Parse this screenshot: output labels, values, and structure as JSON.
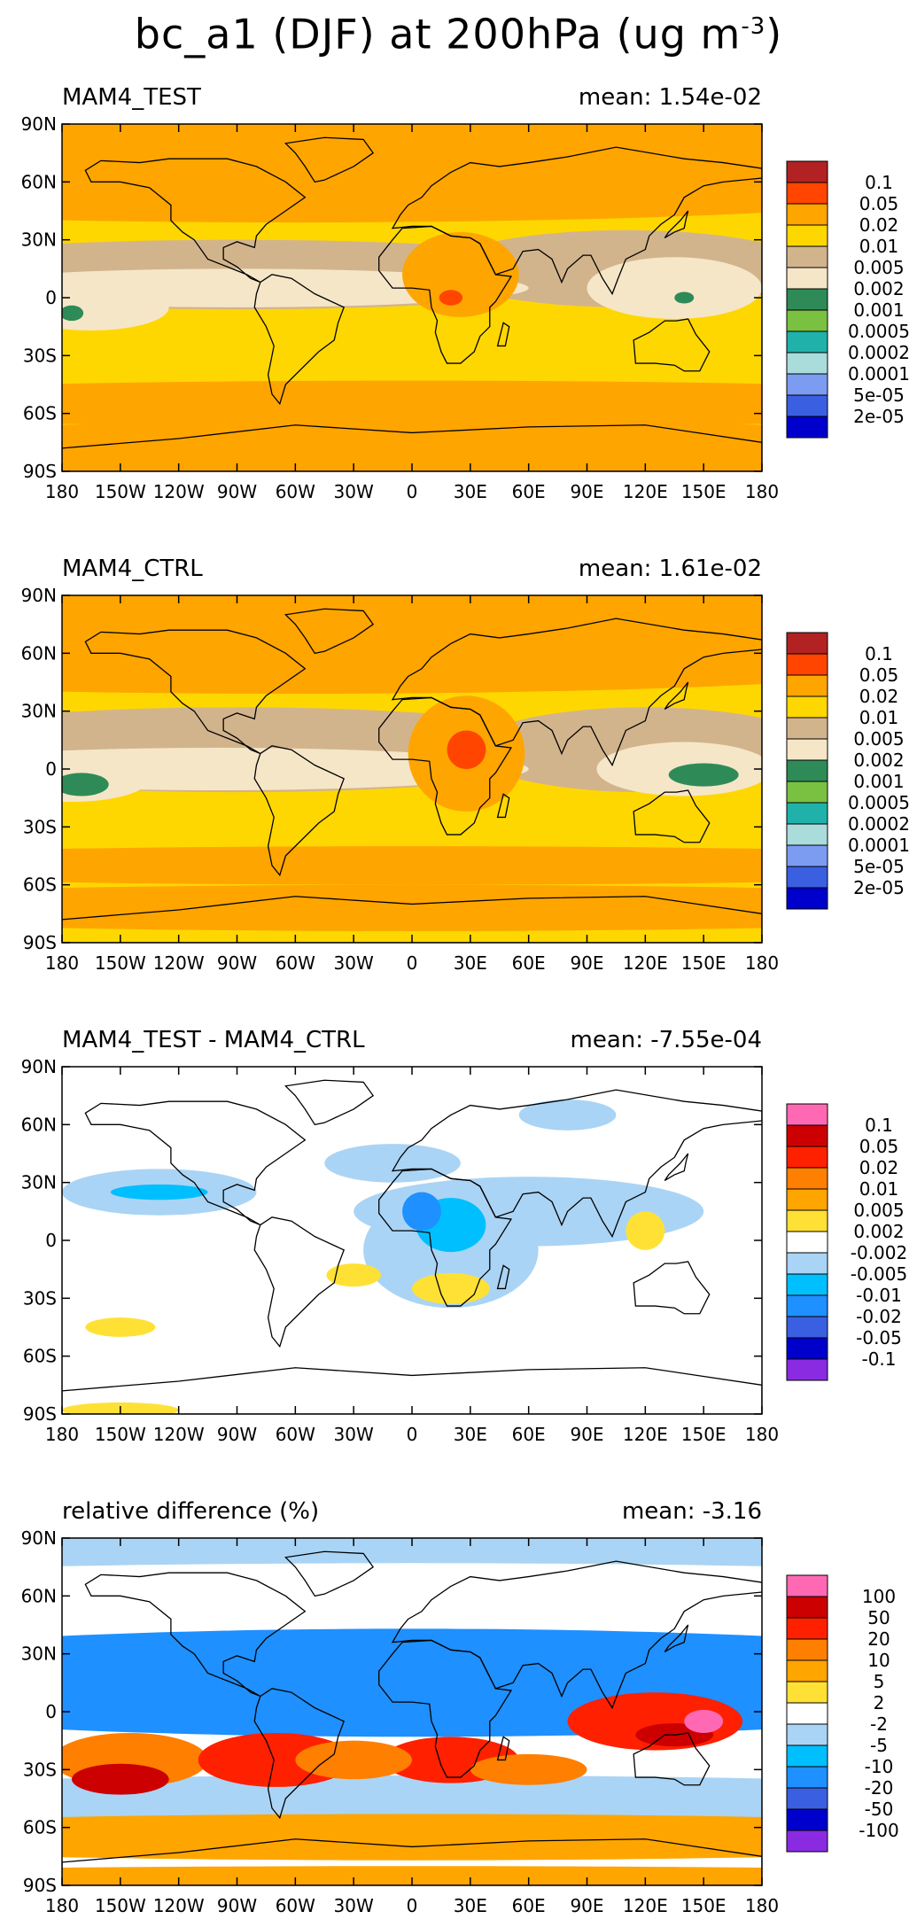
{
  "main_title": {
    "prefix": "bc_a1 (DJF) at 200hPa (ug m",
    "sup": "-3",
    "suffix": ")"
  },
  "chart_data": [
    {
      "type": "heatmap",
      "title": "MAM4_TEST",
      "mean_label": "mean: 1.54e-02",
      "xlabels": [
        "180",
        "150W",
        "120W",
        "90W",
        "60W",
        "30W",
        "0",
        "30E",
        "60E",
        "90E",
        "120E",
        "150E",
        "180"
      ],
      "ylabels": [
        "90N",
        "60N",
        "30N",
        "0",
        "30S",
        "60S",
        "90S"
      ],
      "colorbar": {
        "colors": [
          "#0000cd",
          "#3a5fe0",
          "#7b9cf0",
          "#aadcdc",
          "#20b2aa",
          "#7ac142",
          "#2e8b57",
          "#f5e6c8",
          "#d2b48c",
          "#ffd700",
          "#ffa500",
          "#ff4500",
          "#b22222"
        ],
        "levels": [
          "2e-05",
          "5e-05",
          "0.0001",
          "0.0002",
          "0.0005",
          "0.001",
          "0.002",
          "0.005",
          "0.01",
          "0.02",
          "0.05",
          "0.1"
        ]
      }
    },
    {
      "type": "heatmap",
      "title": "MAM4_CTRL",
      "mean_label": "mean: 1.61e-02",
      "xlabels": [
        "180",
        "150W",
        "120W",
        "90W",
        "60W",
        "30W",
        "0",
        "30E",
        "60E",
        "90E",
        "120E",
        "150E",
        "180"
      ],
      "ylabels": [
        "90N",
        "60N",
        "30N",
        "0",
        "30S",
        "60S",
        "90S"
      ],
      "colorbar": {
        "colors": [
          "#0000cd",
          "#3a5fe0",
          "#7b9cf0",
          "#aadcdc",
          "#20b2aa",
          "#7ac142",
          "#2e8b57",
          "#f5e6c8",
          "#d2b48c",
          "#ffd700",
          "#ffa500",
          "#ff4500",
          "#b22222"
        ],
        "levels": [
          "2e-05",
          "5e-05",
          "0.0001",
          "0.0002",
          "0.0005",
          "0.001",
          "0.002",
          "0.005",
          "0.01",
          "0.02",
          "0.05",
          "0.1"
        ]
      }
    },
    {
      "type": "heatmap",
      "title": "MAM4_TEST - MAM4_CTRL",
      "mean_label": "mean: -7.55e-04",
      "xlabels": [
        "180",
        "150W",
        "120W",
        "90W",
        "60W",
        "30W",
        "0",
        "30E",
        "60E",
        "90E",
        "120E",
        "150E",
        "180"
      ],
      "ylabels": [
        "90N",
        "60N",
        "30N",
        "0",
        "30S",
        "60S",
        "90S"
      ],
      "colorbar": {
        "colors": [
          "#8a2be2",
          "#0000cd",
          "#3a5fe0",
          "#1e90ff",
          "#00bfff",
          "#aad4f5",
          "#ffffff",
          "#ffe135",
          "#ffa500",
          "#ff7f00",
          "#ff2000",
          "#cc0000",
          "#ff69b4"
        ],
        "levels": [
          "-0.1",
          "-0.05",
          "-0.02",
          "-0.01",
          "-0.005",
          "-0.002",
          "0.002",
          "0.005",
          "0.01",
          "0.02",
          "0.05",
          "0.1"
        ]
      }
    },
    {
      "type": "heatmap",
      "title": "relative difference (%)",
      "mean_label": "mean: -3.16",
      "xlabels": [
        "180",
        "150W",
        "120W",
        "90W",
        "60W",
        "30W",
        "0",
        "30E",
        "60E",
        "90E",
        "120E",
        "150E",
        "180"
      ],
      "ylabels": [
        "90N",
        "60N",
        "30N",
        "0",
        "30S",
        "60S",
        "90S"
      ],
      "colorbar": {
        "colors": [
          "#8a2be2",
          "#0000cd",
          "#3a5fe0",
          "#1e90ff",
          "#00bfff",
          "#aad4f5",
          "#ffffff",
          "#ffe135",
          "#ffa500",
          "#ff7f00",
          "#ff2000",
          "#cc0000",
          "#ff69b4"
        ],
        "levels": [
          "-100",
          "-50",
          "-20",
          "-10",
          "-5",
          "-2",
          "2",
          "5",
          "10",
          "20",
          "50",
          "100"
        ]
      }
    }
  ]
}
